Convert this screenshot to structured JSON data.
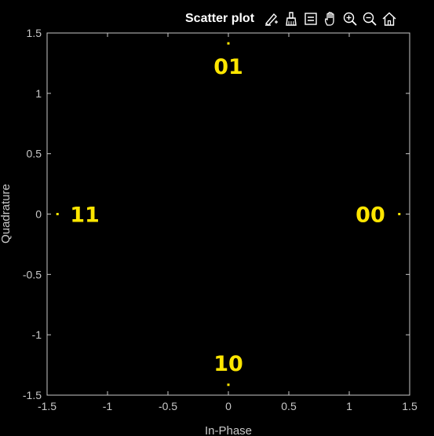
{
  "figure": {
    "title": "Scatter plot",
    "toolbar": [
      {
        "name": "edit-plot-icon"
      },
      {
        "name": "brush-data-icon"
      },
      {
        "name": "data-tips-icon"
      },
      {
        "name": "pan-icon"
      },
      {
        "name": "zoom-in-icon"
      },
      {
        "name": "zoom-out-icon"
      },
      {
        "name": "restore-view-icon"
      }
    ]
  },
  "chart_data": {
    "type": "scatter",
    "title": "Scatter plot",
    "xlabel": "In-Phase",
    "ylabel": "Quadrature",
    "xlim": [
      -1.5,
      1.5
    ],
    "ylim": [
      -1.5,
      1.5
    ],
    "xticks": [
      -1.5,
      -1,
      -0.5,
      0,
      0.5,
      1,
      1.5
    ],
    "yticks": [
      -1.5,
      -1,
      -0.5,
      0,
      0.5,
      1,
      1.5
    ],
    "xtick_labels": [
      "-1.5",
      "-1",
      "-0.5",
      "0",
      "0.5",
      "1",
      "1.5"
    ],
    "ytick_labels": [
      "-1.5",
      "-1",
      "-0.5",
      "0",
      "0.5",
      "1",
      "1.5"
    ],
    "grid": false,
    "colors": {
      "background": "#000000",
      "axes": "#c8c8c8",
      "points": "#ffe600",
      "labels": "#ffe600"
    },
    "points": [
      {
        "x": 1.414,
        "y": 0,
        "label": "00"
      },
      {
        "x": 0,
        "y": 1.414,
        "label": "01"
      },
      {
        "x": 0,
        "y": -1.414,
        "label": "10"
      },
      {
        "x": -1.414,
        "y": 0,
        "label": "11"
      }
    ]
  }
}
